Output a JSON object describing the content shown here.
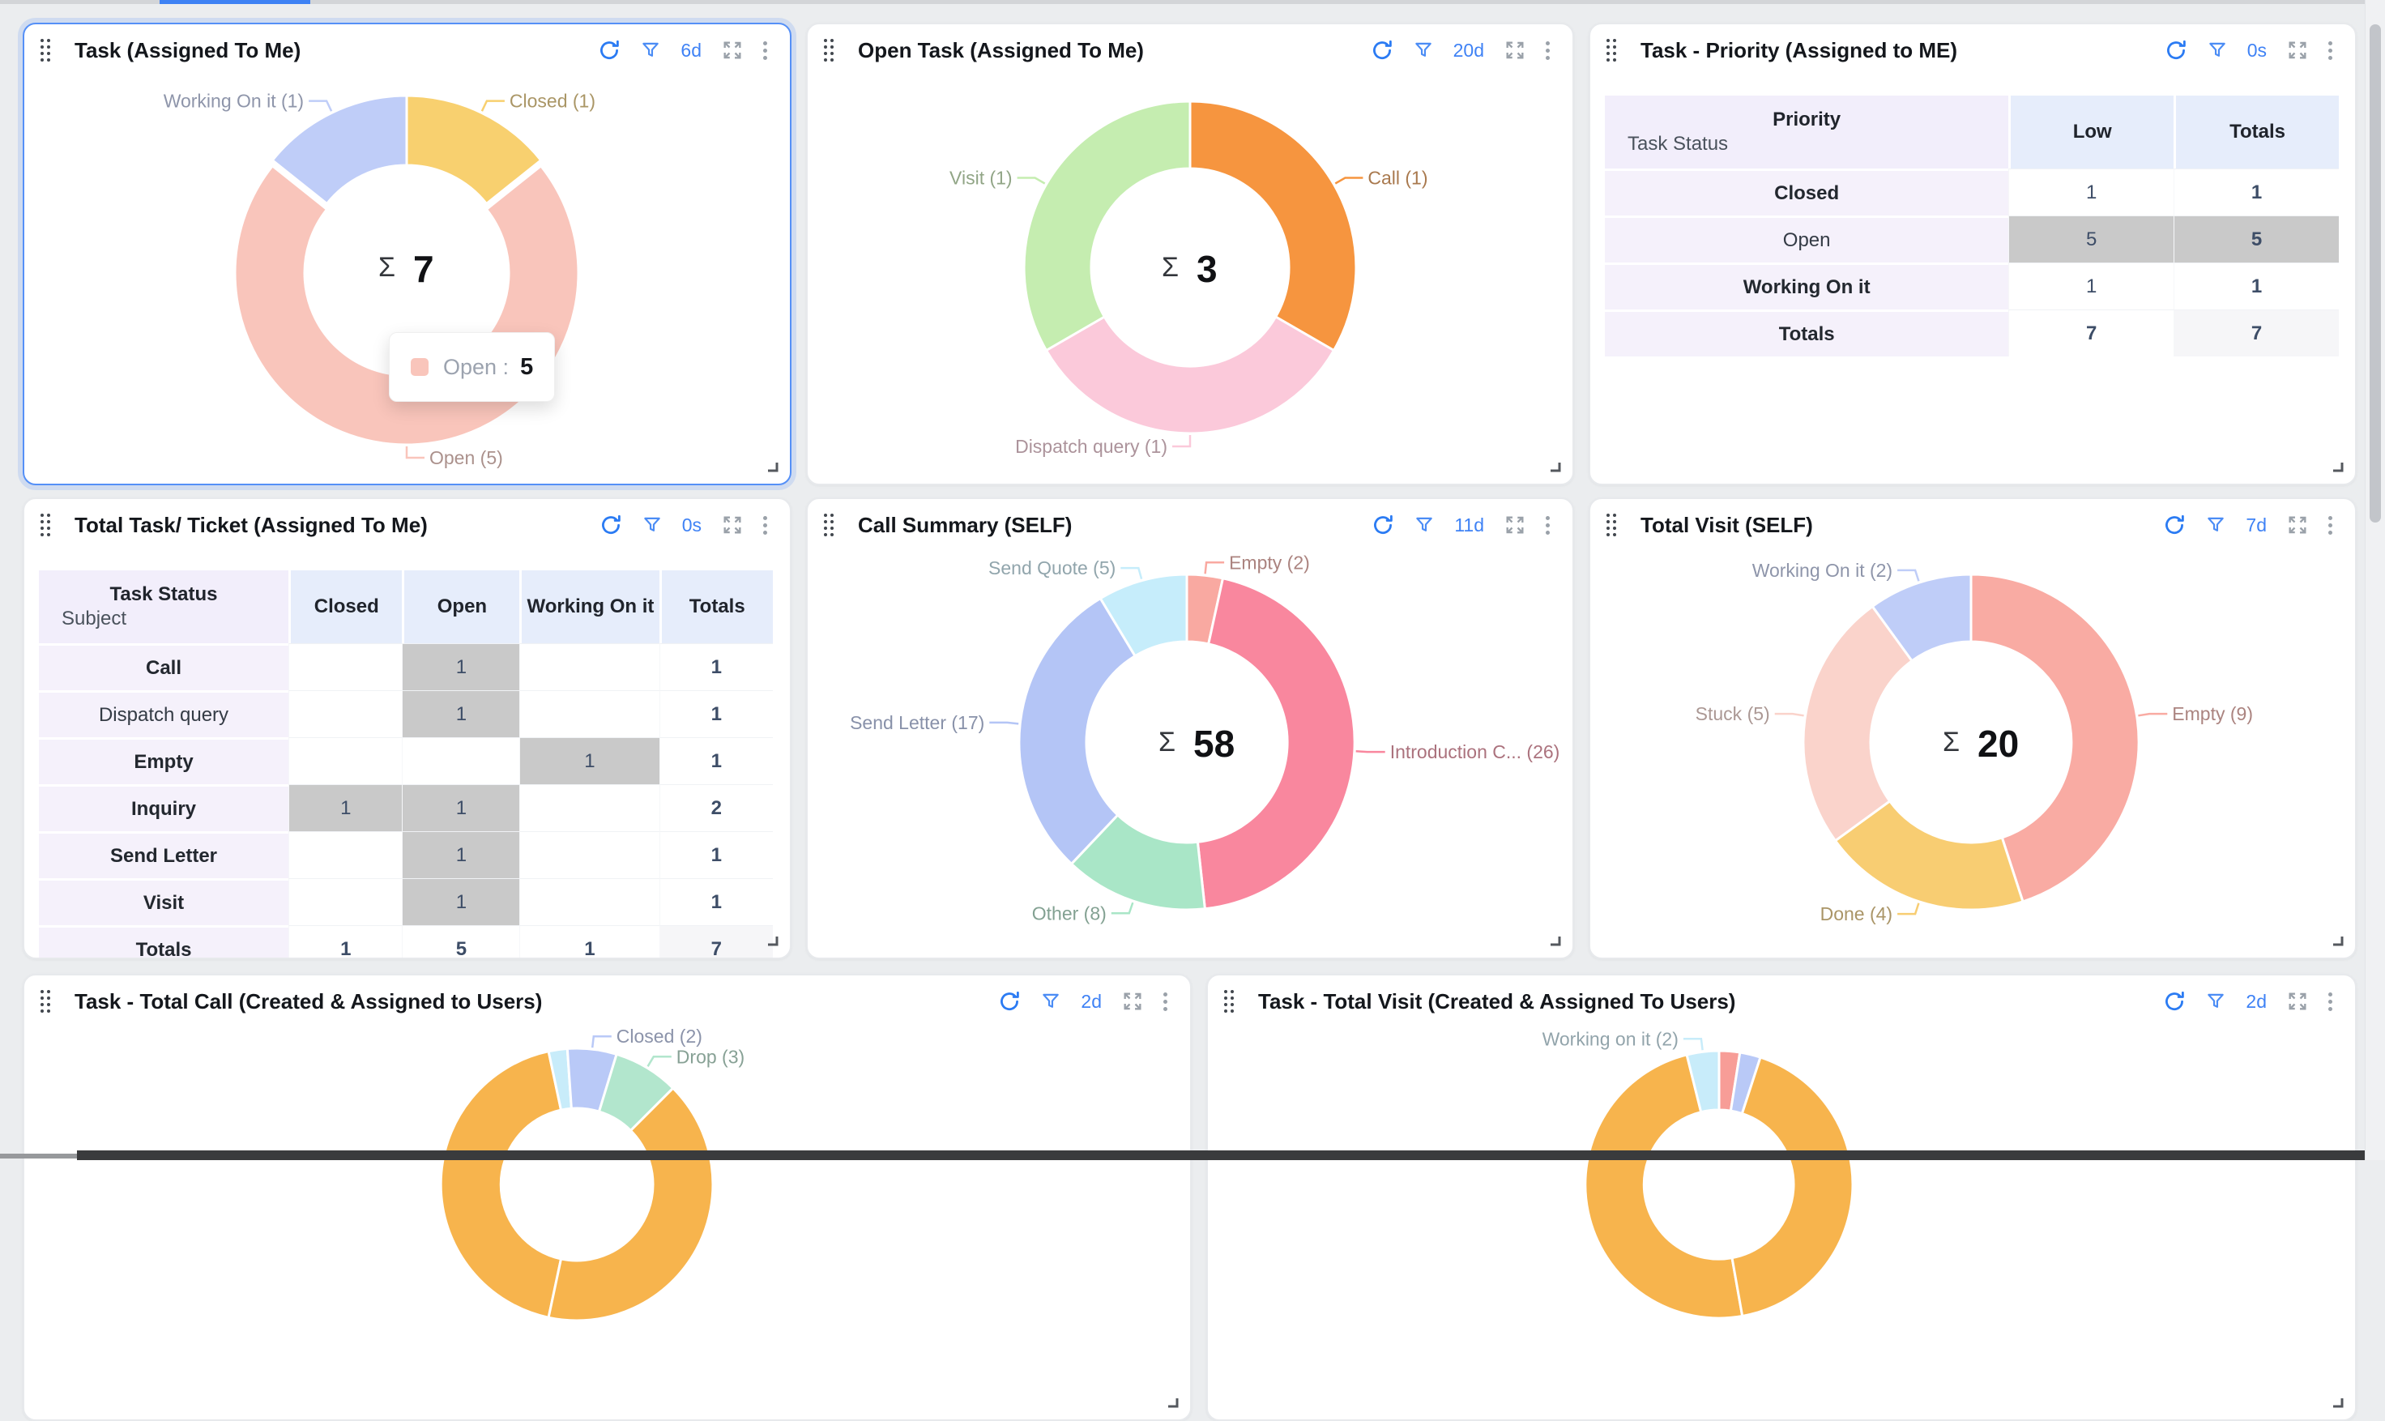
{
  "icons": {
    "refresh": "refresh-icon",
    "filter": "funnel-icon",
    "expand": "expand-icon",
    "more": "vertical-ellipsis-icon",
    "drag": "drag-handle-icon",
    "resize": "resize-corner-icon"
  },
  "colors": {
    "badge_blue": "#3f82f5",
    "highlight_cell": "#c9c9c9",
    "selected_border": "#5590f7"
  },
  "widgets": [
    {
      "id": "task-assigned-to-me",
      "title": "Task (Assigned To Me)",
      "badge": "6d",
      "kind": "donut",
      "selected": true,
      "tooltip": {
        "label_text": "Open :",
        "value": "5",
        "swatch_color": "#f9c5bb"
      },
      "chart_data": {
        "type": "donut",
        "sigma_label": "Σ",
        "total": "7",
        "slices": [
          {
            "label": "Closed",
            "count": 1,
            "display": "Closed (1)",
            "color": "#f8d06f",
            "side": "right"
          },
          {
            "label": "Open",
            "count": 5,
            "display": "Open (5)",
            "color": "#f9c5bb",
            "side": "right",
            "offset": 7
          },
          {
            "label": "Working On it",
            "count": 1,
            "display": "Working On it (1)",
            "color": "#bfcdf8",
            "side": "left"
          }
        ]
      }
    },
    {
      "id": "open-task",
      "title": "Open Task (Assigned To Me)",
      "badge": "20d",
      "kind": "donut",
      "chart_data": {
        "type": "donut",
        "sigma_label": "Σ",
        "total": "3",
        "slices": [
          {
            "label": "Call",
            "count": 1,
            "display": "Call (1)",
            "color": "#f6953f",
            "side": "right"
          },
          {
            "label": "Dispatch query",
            "count": 1,
            "display": "Dispatch query (1)",
            "color": "#fbc9da",
            "side": "left"
          },
          {
            "label": "Visit",
            "count": 1,
            "display": "Visit (1)",
            "color": "#c5edb0",
            "side": "left"
          }
        ]
      }
    },
    {
      "id": "task-priority",
      "title": "Task - Priority (Assigned to ME)",
      "badge": "0s",
      "kind": "table",
      "table": {
        "dim_col": "Priority",
        "dim_row": "Task Status",
        "columns": [
          "Low",
          "Totals"
        ],
        "rows": [
          {
            "label": "Closed",
            "bold": true,
            "cells": [
              "1",
              "1"
            ],
            "highlight": []
          },
          {
            "label": "Open",
            "bold": false,
            "cells": [
              "5",
              "5"
            ],
            "highlight": [
              0,
              1
            ]
          },
          {
            "label": "Working On it",
            "bold": true,
            "cells": [
              "1",
              "1"
            ],
            "highlight": []
          },
          {
            "label": "Totals",
            "bold": true,
            "totals_row": true,
            "cells": [
              "7",
              "7"
            ],
            "highlight": []
          }
        ]
      }
    },
    {
      "id": "total-task-ticket",
      "title": "Total Task/ Ticket (Assigned To Me)",
      "badge": "0s",
      "kind": "table",
      "table": {
        "dim_col": "Task Status",
        "dim_row": "Subject",
        "columns": [
          "Closed",
          "Open",
          "Working On it",
          "Totals"
        ],
        "rows": [
          {
            "label": "Call",
            "bold": true,
            "cells": [
              "",
              "1",
              "",
              "1"
            ],
            "highlight": [
              1
            ]
          },
          {
            "label": "Dispatch query",
            "bold": false,
            "cells": [
              "",
              "1",
              "",
              "1"
            ],
            "highlight": [
              1
            ]
          },
          {
            "label": "Empty",
            "bold": true,
            "cells": [
              "",
              "",
              "1",
              "1"
            ],
            "highlight": [
              2
            ]
          },
          {
            "label": "Inquiry",
            "bold": true,
            "cells": [
              "1",
              "1",
              "",
              "2"
            ],
            "highlight": [
              0,
              1
            ]
          },
          {
            "label": "Send Letter",
            "bold": true,
            "cells": [
              "",
              "1",
              "",
              "1"
            ],
            "highlight": [
              1
            ]
          },
          {
            "label": "Visit",
            "bold": true,
            "cells": [
              "",
              "1",
              "",
              "1"
            ],
            "highlight": [
              1
            ]
          },
          {
            "label": "Totals",
            "bold": true,
            "totals_row": true,
            "partial": true,
            "cells": [
              "1",
              "5",
              "1",
              "7"
            ],
            "highlight": []
          }
        ]
      }
    },
    {
      "id": "call-summary",
      "title": "Call Summary (SELF)",
      "badge": "11d",
      "kind": "donut",
      "chart_data": {
        "type": "donut",
        "sigma_label": "Σ",
        "total": "58",
        "slices": [
          {
            "label": "Empty",
            "count": 2,
            "display": "Empty (2)",
            "color": "#f9a9a1",
            "side": "right"
          },
          {
            "label": "Introduction C...",
            "count": 26,
            "display": "Introduction C... (26)",
            "color": "#f9879e",
            "side": "right"
          },
          {
            "label": "Other",
            "count": 8,
            "display": "Other (8)",
            "color": "#a9e6c7",
            "side": "left"
          },
          {
            "label": "Send Letter",
            "count": 17,
            "display": "Send Letter (17)",
            "color": "#b4c5f6",
            "side": "left"
          },
          {
            "label": "Send Quote",
            "count": 5,
            "display": "Send Quote (5)",
            "color": "#c6edfb",
            "side": "left"
          }
        ]
      }
    },
    {
      "id": "total-visit-self",
      "title": "Total Visit (SELF)",
      "badge": "7d",
      "kind": "donut",
      "chart_data": {
        "type": "donut",
        "sigma_label": "Σ",
        "total": "20",
        "slices": [
          {
            "label": "Empty",
            "count": 9,
            "display": "Empty (9)",
            "color": "#f9aba3",
            "side": "right"
          },
          {
            "label": "Done",
            "count": 4,
            "display": "Done (4)",
            "color": "#f8cd72",
            "side": "left"
          },
          {
            "label": "Stuck",
            "count": 5,
            "display": "Stuck (5)",
            "color": "#fad3cb",
            "side": "left"
          },
          {
            "label": "Working On it",
            "count": 2,
            "display": "Working On it (2)",
            "color": "#bfcdf8",
            "side": "left"
          }
        ]
      }
    },
    {
      "id": "task-total-call",
      "title": "Task - Total Call (Created & Assigned to Users)",
      "badge": "2d",
      "kind": "donut",
      "clipped": true,
      "chart_data": {
        "type": "donut",
        "sigma_label": "Σ",
        "total": "",
        "start_angle": 192,
        "slices": [
          {
            "label": "",
            "angle_deg": 156,
            "color": "#f7b44d"
          },
          {
            "label": "",
            "angle_deg": 8,
            "color": "#c8ecfa"
          },
          {
            "label": "Closed",
            "count": 2,
            "angle_deg": 21,
            "display": "Closed (2)",
            "color": "#b9c9f7",
            "side": "right"
          },
          {
            "label": "Drop",
            "count": 3,
            "angle_deg": 28,
            "display": "Drop (3)",
            "color": "#b2e6cd",
            "side": "right"
          },
          {
            "label": "",
            "angle_deg": 147,
            "color": "#f7b44d"
          }
        ]
      }
    },
    {
      "id": "task-total-visit",
      "title": "Task - Total Visit (Created & Assigned To Users)",
      "badge": "2d",
      "kind": "donut",
      "clipped": true,
      "chart_data": {
        "type": "donut",
        "sigma_label": "Σ",
        "total": "",
        "start_angle": 170,
        "slices": [
          {
            "label": "",
            "angle_deg": 176,
            "color": "#f7b44d"
          },
          {
            "label": "Working on it",
            "count": 2,
            "angle_deg": 14,
            "display": "Working on it (2)",
            "color": "#c8ecfa",
            "side": "left"
          },
          {
            "label": "",
            "angle_deg": 9,
            "color": "#f79d97"
          },
          {
            "label": "",
            "angle_deg": 9,
            "color": "#b9c9f7"
          },
          {
            "label": "",
            "angle_deg": 152,
            "color": "#f7b44d"
          }
        ]
      }
    }
  ]
}
